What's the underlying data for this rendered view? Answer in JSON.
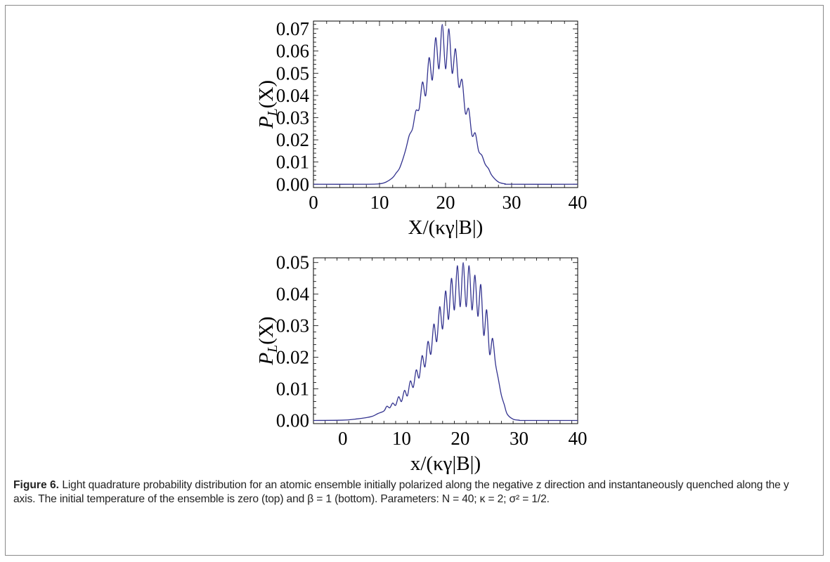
{
  "caption": {
    "label": "Figure 6.",
    "text": "Light quadrature probability distribution for an atomic ensemble initially polarized along the negative z direction and instantaneously quenched along the y axis. The initial temperature of the ensemble is zero (top) and β = 1 (bottom). Parameters: N = 40; κ = 2; σ² = 1/2."
  },
  "chart_data": [
    {
      "type": "line",
      "title": "",
      "xlabel": "X/(κγ|B|)",
      "ylabel": "P_L(X)",
      "xlim": [
        0,
        40
      ],
      "ylim": [
        -0.0015,
        0.0735
      ],
      "x_ticks": [
        0,
        10,
        20,
        30,
        40
      ],
      "y_ticks": [
        0.0,
        0.01,
        0.02,
        0.03,
        0.04,
        0.05,
        0.06,
        0.07
      ],
      "y_tick_labels": [
        "0.00",
        "0.01",
        "0.02",
        "0.03",
        "0.04",
        "0.05",
        "0.06",
        "0.07"
      ],
      "line_color": "#33338f",
      "grid": false,
      "series": [
        {
          "x": [
            0,
            8,
            10,
            11,
            12,
            12.5,
            13,
            13.5,
            14,
            14.5,
            15,
            15.5,
            16,
            16.5,
            17,
            17.5,
            18,
            18.5,
            19,
            19.5,
            20,
            20.5,
            21,
            21.5,
            22,
            22.5,
            23,
            23.5,
            24,
            24.5,
            25,
            25.5,
            26,
            26.5,
            27,
            28,
            29,
            30,
            40
          ],
          "values": [
            0,
            0,
            0.0002,
            0.001,
            0.003,
            0.005,
            0.007,
            0.011,
            0.016,
            0.022,
            0.025,
            0.033,
            0.034,
            0.046,
            0.04,
            0.057,
            0.047,
            0.066,
            0.052,
            0.072,
            0.052,
            0.07,
            0.05,
            0.061,
            0.044,
            0.047,
            0.032,
            0.034,
            0.022,
            0.023,
            0.015,
            0.013,
            0.009,
            0.007,
            0.004,
            0.001,
            0.0002,
            0,
            0
          ]
        }
      ]
    },
    {
      "type": "line",
      "title": "",
      "xlabel": "x/(κγ|B|)",
      "ylabel": "P_L(X)",
      "xlim": [
        -5,
        40
      ],
      "ylim": [
        -0.001,
        0.0515
      ],
      "x_ticks": [
        0,
        10,
        20,
        30,
        40
      ],
      "y_ticks": [
        0.0,
        0.01,
        0.02,
        0.03,
        0.04,
        0.05
      ],
      "y_tick_labels": [
        "0.00",
        "0.01",
        "0.02",
        "0.03",
        "0.04",
        "0.05"
      ],
      "line_color": "#33338f",
      "grid": false,
      "series": [
        {
          "x": [
            -5,
            0,
            2,
            4,
            5,
            6,
            7,
            7.5,
            8,
            8.5,
            9,
            9.5,
            10,
            10.5,
            11,
            11.5,
            12,
            12.5,
            13,
            13.5,
            14,
            14.5,
            15,
            15.5,
            16,
            16.5,
            17,
            17.5,
            18,
            18.5,
            19,
            19.5,
            20,
            20.5,
            21,
            21.5,
            22,
            22.5,
            23,
            23.5,
            24,
            24.5,
            25,
            25.5,
            26,
            26.5,
            27,
            27.5,
            28,
            29,
            30,
            31,
            40
          ],
          "values": [
            0,
            0.0001,
            0.0004,
            0.0009,
            0.0013,
            0.0022,
            0.003,
            0.0045,
            0.004,
            0.0055,
            0.0048,
            0.0075,
            0.006,
            0.0095,
            0.0078,
            0.0125,
            0.0105,
            0.016,
            0.0135,
            0.0205,
            0.017,
            0.025,
            0.021,
            0.0305,
            0.025,
            0.036,
            0.029,
            0.041,
            0.032,
            0.045,
            0.035,
            0.049,
            0.036,
            0.05,
            0.036,
            0.049,
            0.035,
            0.046,
            0.033,
            0.043,
            0.027,
            0.035,
            0.021,
            0.026,
            0.018,
            0.013,
            0.008,
            0.005,
            0.002,
            0.0004,
            0.0001,
            0,
            0
          ]
        }
      ]
    }
  ]
}
